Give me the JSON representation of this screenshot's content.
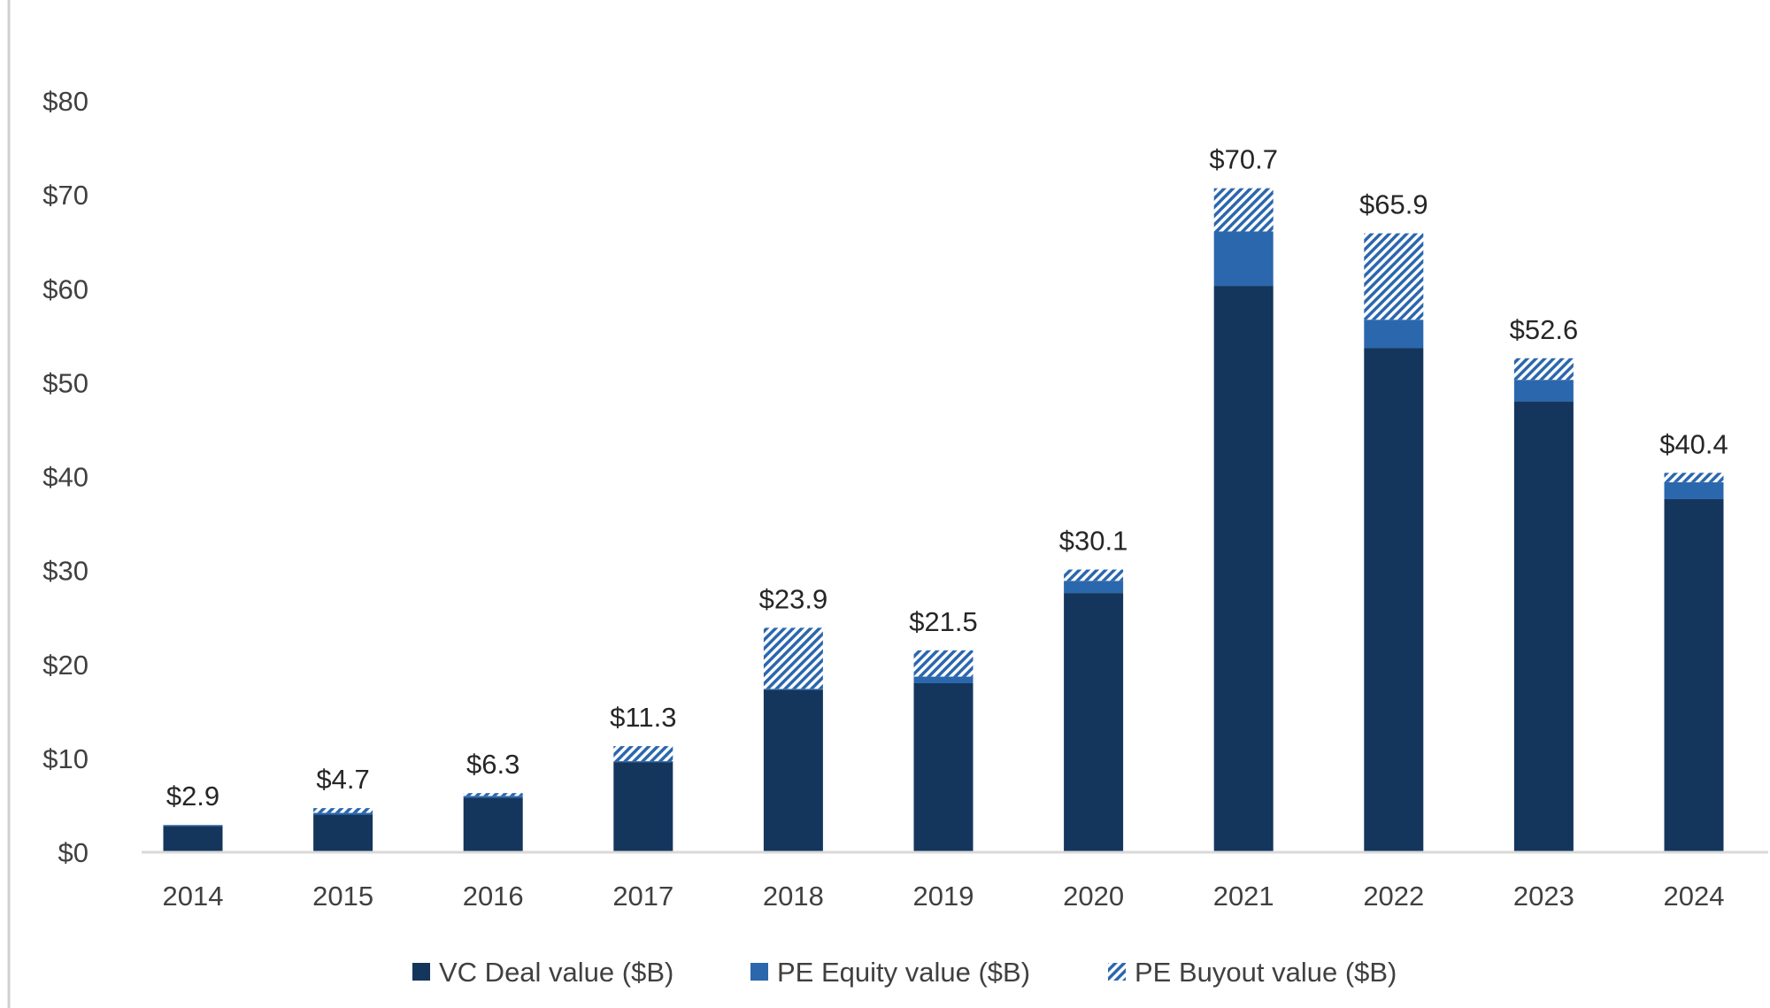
{
  "chart_data": {
    "type": "bar",
    "stacked": true,
    "title": "",
    "xlabel": "",
    "ylabel": "",
    "categories": [
      "2014",
      "2015",
      "2016",
      "2017",
      "2018",
      "2019",
      "2020",
      "2021",
      "2022",
      "2023",
      "2024"
    ],
    "series": [
      {
        "name": "VC Deal value ($B)",
        "color": "#14365d",
        "pattern": "solid",
        "values": [
          2.8,
          4.0,
          5.8,
          9.6,
          17.3,
          18.0,
          27.6,
          60.3,
          53.7,
          48.0,
          37.6
        ]
      },
      {
        "name": "PE Equity value ($B)",
        "color": "#2b67ad",
        "pattern": "solid",
        "values": [
          0.1,
          0.2,
          0.2,
          0.1,
          0.1,
          0.7,
          1.3,
          5.8,
          3.0,
          2.3,
          1.8
        ]
      },
      {
        "name": "PE Buyout value ($B)",
        "color": "#2b67ad",
        "pattern": "diagonal-hatch",
        "values": [
          0.0,
          0.5,
          0.3,
          1.6,
          6.5,
          2.8,
          1.2,
          4.6,
          9.2,
          2.3,
          1.0
        ]
      }
    ],
    "totals_labels": [
      "$2.9",
      "$4.7",
      "$6.3",
      "$11.3",
      "$23.9",
      "$21.5",
      "$30.1",
      "$70.7",
      "$65.9",
      "$52.6",
      "$40.4"
    ],
    "ylim": [
      0,
      80
    ],
    "yticks": [
      0,
      10,
      20,
      30,
      40,
      50,
      60,
      70,
      80
    ],
    "ytick_labels": [
      "$0",
      "$10",
      "$20",
      "$30",
      "$40",
      "$50",
      "$60",
      "$70",
      "$80"
    ],
    "grid": false,
    "legend_position": "bottom"
  }
}
